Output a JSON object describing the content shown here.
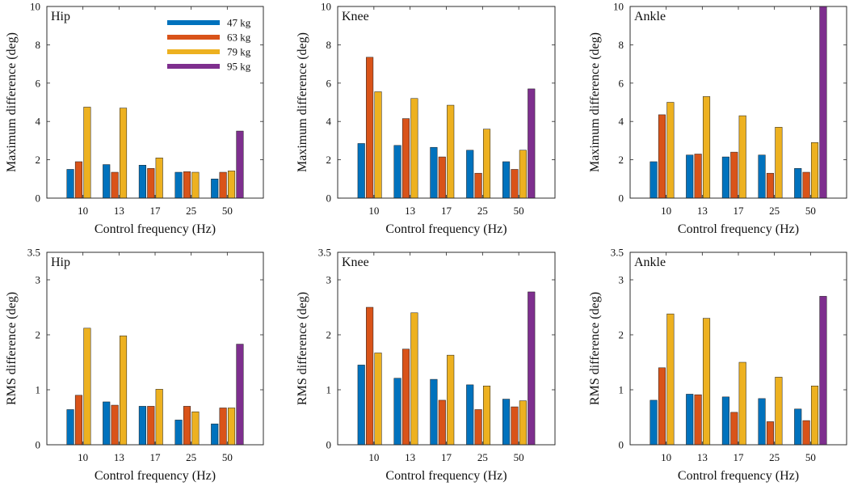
{
  "figure": {
    "legend": {
      "placement": "top-right of first panel",
      "entries": [
        "47 kg",
        "63 kg",
        "79 kg",
        "95 kg"
      ]
    },
    "series_colors": [
      "#0072BD",
      "#D95319",
      "#EDB120",
      "#7E2F8E"
    ]
  },
  "chart_data": [
    {
      "type": "bar",
      "title": "Hip",
      "xlabel": "Control frequency (Hz)",
      "ylabel": "Maximum difference (deg)",
      "categories": [
        "10",
        "13",
        "17",
        "25",
        "50"
      ],
      "ylim": [
        0,
        10
      ],
      "yticks": [
        "0",
        "2",
        "4",
        "6",
        "8",
        "10"
      ],
      "series": [
        {
          "name": "47 kg",
          "values": [
            1.5,
            1.75,
            1.72,
            1.35,
            1.0
          ]
        },
        {
          "name": "63 kg",
          "values": [
            1.9,
            1.35,
            1.55,
            1.38,
            1.35
          ]
        },
        {
          "name": "79 kg",
          "values": [
            4.75,
            4.7,
            2.1,
            1.35,
            1.42
          ]
        },
        {
          "name": "95 kg",
          "values": [
            0,
            0,
            0,
            0,
            3.5
          ]
        }
      ]
    },
    {
      "type": "bar",
      "title": "Knee",
      "xlabel": "Control frequency (Hz)",
      "ylabel": "Maximum difference (deg)",
      "categories": [
        "10",
        "13",
        "17",
        "25",
        "50"
      ],
      "ylim": [
        0,
        10
      ],
      "yticks": [
        "0",
        "2",
        "4",
        "6",
        "8",
        "10"
      ],
      "series": [
        {
          "name": "47 kg",
          "values": [
            2.85,
            2.75,
            2.65,
            2.5,
            1.9
          ]
        },
        {
          "name": "63 kg",
          "values": [
            7.35,
            4.15,
            2.15,
            1.3,
            1.5
          ]
        },
        {
          "name": "79 kg",
          "values": [
            5.55,
            5.2,
            4.85,
            3.6,
            2.5
          ]
        },
        {
          "name": "95 kg",
          "values": [
            0,
            0,
            0,
            0,
            5.7
          ]
        }
      ]
    },
    {
      "type": "bar",
      "title": "Ankle",
      "xlabel": "Control frequency (Hz)",
      "ylabel": "Maximum difference (deg)",
      "categories": [
        "10",
        "13",
        "17",
        "25",
        "50"
      ],
      "ylim": [
        0,
        10
      ],
      "yticks": [
        "0",
        "2",
        "4",
        "6",
        "8",
        "10"
      ],
      "series": [
        {
          "name": "47 kg",
          "values": [
            1.9,
            2.25,
            2.15,
            2.25,
            1.55
          ]
        },
        {
          "name": "63 kg",
          "values": [
            4.35,
            2.3,
            2.4,
            1.3,
            1.35
          ]
        },
        {
          "name": "79 kg",
          "values": [
            5.0,
            5.3,
            4.3,
            3.7,
            2.9
          ]
        },
        {
          "name": "95 kg",
          "values": [
            0,
            0,
            0,
            0,
            10.0
          ]
        }
      ]
    },
    {
      "type": "bar",
      "title": "Hip",
      "xlabel": "Control frequency (Hz)",
      "ylabel": "RMS difference (deg)",
      "categories": [
        "10",
        "13",
        "17",
        "25",
        "50"
      ],
      "ylim": [
        0,
        3.5
      ],
      "yticks": [
        "0",
        "1",
        "2",
        "3",
        "3.5"
      ],
      "series": [
        {
          "name": "47 kg",
          "values": [
            0.64,
            0.78,
            0.7,
            0.45,
            0.38
          ]
        },
        {
          "name": "63 kg",
          "values": [
            0.9,
            0.72,
            0.7,
            0.7,
            0.67
          ]
        },
        {
          "name": "79 kg",
          "values": [
            2.12,
            1.98,
            1.01,
            0.6,
            0.67
          ]
        },
        {
          "name": "95 kg",
          "values": [
            0,
            0,
            0,
            0,
            1.83
          ]
        }
      ]
    },
    {
      "type": "bar",
      "title": "Knee",
      "xlabel": "Control frequency (Hz)",
      "ylabel": "RMS difference (deg)",
      "categories": [
        "10",
        "13",
        "17",
        "25",
        "50"
      ],
      "ylim": [
        0,
        3.5
      ],
      "yticks": [
        "0",
        "1",
        "2",
        "3",
        "3.5"
      ],
      "series": [
        {
          "name": "47 kg",
          "values": [
            1.45,
            1.21,
            1.19,
            1.09,
            0.83
          ]
        },
        {
          "name": "63 kg",
          "values": [
            2.5,
            1.74,
            0.81,
            0.64,
            0.69
          ]
        },
        {
          "name": "79 kg",
          "values": [
            1.67,
            2.4,
            1.63,
            1.07,
            0.8
          ]
        },
        {
          "name": "95 kg",
          "values": [
            0,
            0,
            0,
            0,
            2.78
          ]
        }
      ]
    },
    {
      "type": "bar",
      "title": "Ankle",
      "xlabel": "Control frequency (Hz)",
      "ylabel": "RMS difference (deg)",
      "categories": [
        "10",
        "13",
        "17",
        "25",
        "50"
      ],
      "ylim": [
        0,
        3.5
      ],
      "yticks": [
        "0",
        "1",
        "2",
        "3",
        "3.5"
      ],
      "series": [
        {
          "name": "47 kg",
          "values": [
            0.81,
            0.92,
            0.87,
            0.84,
            0.65
          ]
        },
        {
          "name": "63 kg",
          "values": [
            1.4,
            0.91,
            0.59,
            0.42,
            0.44
          ]
        },
        {
          "name": "79 kg",
          "values": [
            2.38,
            2.3,
            1.5,
            1.23,
            1.07
          ]
        },
        {
          "name": "95 kg",
          "values": [
            0,
            0,
            0,
            0,
            2.7
          ]
        }
      ]
    }
  ]
}
